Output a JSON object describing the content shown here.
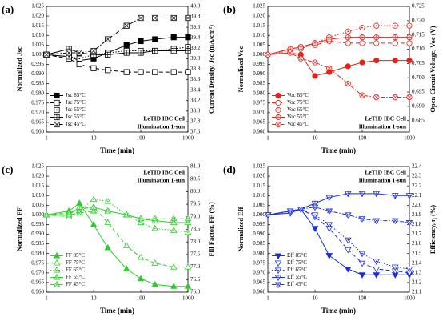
{
  "chart_data": [
    {
      "type": "line",
      "panel": "(a)",
      "ylabel": "Normalized Jsc",
      "y2label": "Current Density, Jsc (mA/cm²)",
      "xlabel": "Time (min)",
      "annotations": [
        "LeTID IBC Cell",
        "Illumination 1-sun"
      ],
      "annotation_position": "lower right",
      "legend": "lower left",
      "xscale": "log",
      "marker_shape": "square",
      "xlim": [
        1,
        1000
      ],
      "xticks": [
        1,
        10,
        100,
        1000
      ],
      "ylim": [
        0.96,
        1.025
      ],
      "yticks": [
        {
          "value": 0.96,
          "label": "0.960"
        },
        {
          "value": 0.965,
          "label": "0.965"
        },
        {
          "value": 0.97,
          "label": "0.970"
        },
        {
          "value": 0.975,
          "label": "0.975"
        },
        {
          "value": 0.98,
          "label": "0.980"
        },
        {
          "value": 0.985,
          "label": "0.985"
        },
        {
          "value": 0.99,
          "label": "0.990"
        },
        {
          "value": 0.995,
          "label": "0.995"
        },
        {
          "value": 1,
          "label": "1.000"
        },
        {
          "value": 1.005,
          "label": "1.005"
        },
        {
          "value": 1.01,
          "label": "1.010"
        },
        {
          "value": 1.015,
          "label": "1.015"
        },
        {
          "value": 1.02,
          "label": "1.020"
        },
        {
          "value": 1.025,
          "label": "1.025"
        }
      ],
      "y2lim": [
        37.6,
        40.0
      ],
      "y2ticks": [
        37.6,
        37.8,
        {
          "value": 38,
          "label": "38.0"
        },
        38.2,
        38.4,
        38.6,
        38.8,
        {
          "value": 39,
          "label": "39.0"
        },
        39.2,
        39.4,
        39.6,
        39.8,
        {
          "value": 40,
          "label": "40.0"
        }
      ],
      "x": [
        1,
        3,
        5,
        10,
        20,
        50,
        100,
        200,
        500,
        1000
      ],
      "series": [
        {
          "name": "Jsc 85°C",
          "color": "#000000",
          "marker": "filled",
          "line_style": "solid",
          "values": [
            1.0,
            0.999,
            0.997,
            0.998,
            1.001,
            1.005,
            1.007,
            1.008,
            1.009,
            1.009
          ]
        },
        {
          "name": "Jsc 75°C",
          "color": "#000000",
          "marker": "open",
          "line_style": "dash",
          "values": [
            1.0,
            0.998,
            0.995,
            0.993,
            0.992,
            0.991,
            0.991,
            0.991,
            0.991,
            0.991
          ]
        },
        {
          "name": "Jsc 65°C",
          "color": "#000000",
          "marker": "dot",
          "line_style": "dot",
          "values": [
            1.0,
            0.999,
            0.998,
            1.0,
            1.001,
            1.002,
            1.002,
            1.002,
            1.003,
            1.004
          ]
        },
        {
          "name": "Jsc 55°C",
          "color": "#000000",
          "marker": "plus",
          "line_style": "solid",
          "values": [
            1.0,
            1.003,
            1.001,
            1.0,
            1.0,
            1.001,
            1.001,
            1.002,
            1.002,
            1.002
          ]
        },
        {
          "name": "Jsc 45°C",
          "color": "#000000",
          "marker": "x",
          "line_style": "dashdot",
          "values": [
            1.0,
            1.001,
            1.001,
            1.002,
            1.008,
            1.015,
            1.019,
            1.019,
            1.019,
            1.019
          ]
        }
      ]
    },
    {
      "type": "line",
      "panel": "(b)",
      "ylabel": "Normalized Voc",
      "y2label": "Open Circuit Voltage, Voc (V)",
      "xlabel": "Time (min)",
      "annotations": [
        "LeTID IBC Cell",
        "Illumination 1-sun"
      ],
      "annotation_position": "lower right",
      "legend": "lower left",
      "xscale": "log",
      "marker_shape": "circle",
      "xlim": [
        1,
        1000
      ],
      "xticks": [
        1,
        10,
        100,
        1000
      ],
      "ylim": [
        0.96,
        1.025
      ],
      "yticks": [
        {
          "value": 0.96,
          "label": "0.960"
        },
        {
          "value": 0.965,
          "label": "0.965"
        },
        {
          "value": 0.97,
          "label": "0.970"
        },
        {
          "value": 0.975,
          "label": "0.975"
        },
        {
          "value": 0.98,
          "label": "0.980"
        },
        {
          "value": 0.985,
          "label": "0.985"
        },
        {
          "value": 0.99,
          "label": "0.990"
        },
        {
          "value": 0.995,
          "label": "0.995"
        },
        {
          "value": 1,
          "label": "1.000"
        },
        {
          "value": 1.005,
          "label": "1.005"
        },
        {
          "value": 1.01,
          "label": "1.010"
        },
        {
          "value": 1.015,
          "label": "1.015"
        },
        {
          "value": 1.02,
          "label": "1.020"
        },
        {
          "value": 1.025,
          "label": "1.025"
        }
      ],
      "y2lim": [
        0.681,
        0.725
      ],
      "y2ticks": [
        0.685,
        {
          "value": 0.69,
          "label": "0.690"
        },
        0.695,
        {
          "value": 0.7,
          "label": "0.700"
        },
        0.705,
        {
          "value": 0.71,
          "label": "0.710"
        },
        0.715,
        {
          "value": 0.72,
          "label": "0.720"
        },
        0.725
      ],
      "x": [
        1,
        3,
        5,
        10,
        20,
        50,
        100,
        200,
        500,
        1000
      ],
      "series": [
        {
          "name": "Voc 85°C",
          "color": "#e8201a",
          "marker": "filled",
          "line_style": "solid",
          "values": [
            1.0,
            1.001,
            1.0,
            0.989,
            0.991,
            0.994,
            0.996,
            0.997,
            0.997,
            0.997
          ]
        },
        {
          "name": "Voc 75°C",
          "color": "#e8201a",
          "marker": "open",
          "line_style": "dash",
          "values": [
            1.0,
            1.003,
            1.004,
            1.005,
            1.007,
            1.006,
            1.006,
            1.006,
            1.006,
            1.006
          ]
        },
        {
          "name": "Voc 65°C",
          "color": "#e8201a",
          "marker": "dot",
          "line_style": "dot",
          "values": [
            1.0,
            1.002,
            1.003,
            1.006,
            1.009,
            1.012,
            1.014,
            1.015,
            1.015,
            1.015
          ]
        },
        {
          "name": "Voc 55°C",
          "color": "#e8201a",
          "marker": "plus",
          "line_style": "solid",
          "values": [
            1.0,
            1.003,
            1.004,
            1.006,
            1.008,
            1.009,
            1.009,
            1.009,
            1.009,
            1.009
          ]
        },
        {
          "name": "Voc 45°C",
          "color": "#e8201a",
          "marker": "x",
          "line_style": "dashdot",
          "values": [
            1.0,
            1.001,
            0.998,
            0.996,
            0.993,
            0.985,
            0.979,
            0.978,
            0.978,
            0.978
          ]
        }
      ]
    },
    {
      "type": "line",
      "panel": "(c)",
      "ylabel": "Normalized FF",
      "y2label": "Fill Factor, FF (%)",
      "xlabel": "Time (min)",
      "annotations": [
        "LeTID IBC Cell",
        "Illumination 1-sun"
      ],
      "annotation_position": "upper right",
      "legend": "lower left",
      "xscale": "log",
      "marker_shape": "triangle-up",
      "xlim": [
        1,
        1000
      ],
      "xticks": [
        1,
        10,
        100,
        1000
      ],
      "ylim": [
        0.96,
        1.025
      ],
      "yticks": [
        {
          "value": 0.96,
          "label": "0.960"
        },
        {
          "value": 0.965,
          "label": "0.965"
        },
        {
          "value": 0.97,
          "label": "0.970"
        },
        {
          "value": 0.975,
          "label": "0.975"
        },
        {
          "value": 0.98,
          "label": "0.980"
        },
        {
          "value": 0.985,
          "label": "0.985"
        },
        {
          "value": 0.99,
          "label": "0.990"
        },
        {
          "value": 0.995,
          "label": "0.995"
        },
        {
          "value": 1,
          "label": "1.000"
        },
        {
          "value": 1.005,
          "label": "1.005"
        },
        {
          "value": 1.01,
          "label": "1.010"
        },
        {
          "value": 1.015,
          "label": "1.015"
        },
        {
          "value": 1.02,
          "label": "1.020"
        },
        {
          "value": 1.025,
          "label": "1.025"
        }
      ],
      "y2lim": [
        76.0,
        81.0
      ],
      "y2ticks": [
        {
          "value": 76,
          "label": "76.0"
        },
        76.5,
        {
          "value": 77,
          "label": "77.0"
        },
        77.5,
        {
          "value": 78,
          "label": "78.0"
        },
        78.5,
        {
          "value": 79,
          "label": "79.0"
        },
        79.5,
        {
          "value": 80,
          "label": "80.0"
        },
        80.5,
        {
          "value": 81,
          "label": "81.0"
        }
      ],
      "x": [
        1,
        3,
        5,
        10,
        20,
        50,
        100,
        200,
        500,
        1000
      ],
      "series": [
        {
          "name": "FF 85°C",
          "color": "#2ecc2e",
          "marker": "filled",
          "line_style": "solid",
          "values": [
            1.0,
            1.002,
            1.006,
            0.995,
            0.983,
            0.972,
            0.967,
            0.964,
            0.963,
            0.963
          ]
        },
        {
          "name": "FF 75°C",
          "color": "#2ecc2e",
          "marker": "open",
          "line_style": "dash",
          "values": [
            1.0,
            1.001,
            1.003,
            1.004,
            0.996,
            0.984,
            0.978,
            0.975,
            0.973,
            0.973
          ]
        },
        {
          "name": "FF 65°C",
          "color": "#2ecc2e",
          "marker": "dot",
          "line_style": "dot",
          "values": [
            1.0,
            0.999,
            1.002,
            1.008,
            1.007,
            1.0,
            0.996,
            0.993,
            0.992,
            0.991
          ]
        },
        {
          "name": "FF 55°C",
          "color": "#2ecc2e",
          "marker": "plus",
          "line_style": "solid",
          "values": [
            1.0,
            1.0,
            1.004,
            1.004,
            1.002,
            1.0,
            0.998,
            0.997,
            0.996,
            0.996
          ]
        },
        {
          "name": "FF 45°C",
          "color": "#2ecc2e",
          "marker": "x",
          "line_style": "dashdot",
          "values": [
            1.0,
            1.0,
            1.001,
            1.002,
            1.002,
            1.0,
            0.998,
            0.998,
            0.998,
            0.998
          ]
        }
      ]
    },
    {
      "type": "line",
      "panel": "(d)",
      "ylabel": "Normalized Eff",
      "y2label": "Efficiency, η (%)",
      "xlabel": "Time (min)",
      "annotations": [
        "LeTID IBC Cell",
        "Illumination 1-sun"
      ],
      "annotation_position": "upper right",
      "legend": "lower left",
      "xscale": "log",
      "marker_shape": "triangle-down",
      "xlim": [
        1,
        1000
      ],
      "xticks": [
        1,
        10,
        100,
        1000
      ],
      "ylim": [
        0.96,
        1.025
      ],
      "yticks": [
        {
          "value": 0.96,
          "label": "0.960"
        },
        {
          "value": 0.965,
          "label": "0.965"
        },
        {
          "value": 0.97,
          "label": "0.970"
        },
        {
          "value": 0.975,
          "label": "0.975"
        },
        {
          "value": 0.98,
          "label": "0.980"
        },
        {
          "value": 0.985,
          "label": "0.985"
        },
        {
          "value": 0.99,
          "label": "0.990"
        },
        {
          "value": 0.995,
          "label": "0.995"
        },
        {
          "value": 1,
          "label": "1.000"
        },
        {
          "value": 1.005,
          "label": "1.005"
        },
        {
          "value": 1.01,
          "label": "1.010"
        },
        {
          "value": 1.015,
          "label": "1.015"
        },
        {
          "value": 1.02,
          "label": "1.020"
        },
        {
          "value": 1.025,
          "label": "1.025"
        }
      ],
      "y2lim": [
        21.1,
        22.4
      ],
      "y2ticks": [
        21.1,
        21.2,
        21.3,
        21.4,
        21.5,
        21.6,
        21.7,
        21.8,
        21.9,
        {
          "value": 22,
          "label": "22.0"
        },
        22.1,
        22.2,
        22.3,
        22.4
      ],
      "x": [
        1,
        3,
        5,
        10,
        20,
        50,
        100,
        200,
        500,
        1000
      ],
      "series": [
        {
          "name": "Eff 85°C",
          "color": "#1a2fd6",
          "marker": "filled",
          "line_style": "solid",
          "values": [
            1.0,
            1.002,
            1.003,
            0.993,
            0.979,
            0.972,
            0.969,
            0.969,
            0.969,
            0.969
          ]
        },
        {
          "name": "Eff 75°C",
          "color": "#1a2fd6",
          "marker": "open",
          "line_style": "dash",
          "values": [
            1.0,
            1.002,
            1.003,
            0.999,
            0.993,
            0.982,
            0.975,
            0.972,
            0.971,
            0.97
          ]
        },
        {
          "name": "Eff 65°C",
          "color": "#1a2fd6",
          "marker": "dot",
          "line_style": "dot",
          "values": [
            1.0,
            1.001,
            1.003,
            1.0,
            0.995,
            0.987,
            0.98,
            0.976,
            0.973,
            0.972
          ]
        },
        {
          "name": "Eff 55°C",
          "color": "#1a2fd6",
          "marker": "plus",
          "line_style": "solid",
          "values": [
            1.0,
            1.001,
            1.003,
            1.006,
            1.009,
            1.011,
            1.011,
            1.011,
            1.01,
            1.01
          ]
        },
        {
          "name": "Eff 45°C",
          "color": "#1a2fd6",
          "marker": "x",
          "line_style": "dashdot",
          "values": [
            1.0,
            1.002,
            1.003,
            1.004,
            1.002,
            1.0,
            0.998,
            0.997,
            0.997,
            0.996
          ]
        }
      ]
    }
  ]
}
